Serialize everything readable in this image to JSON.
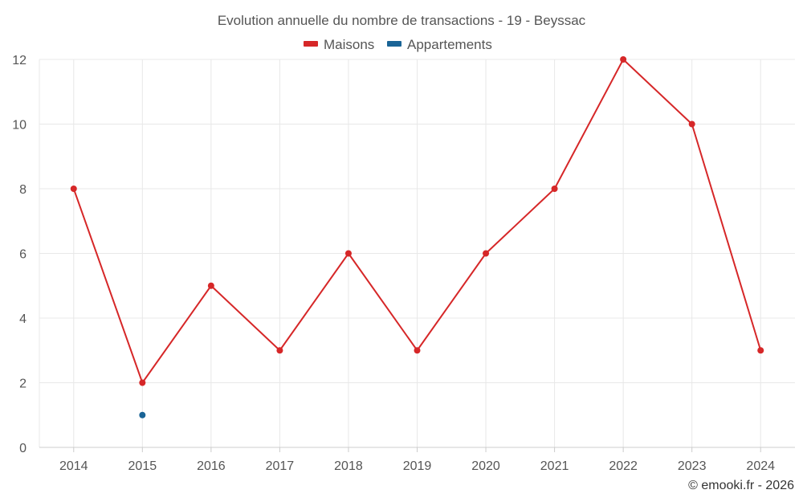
{
  "chart_data": {
    "type": "line",
    "title": "Evolution annuelle du nombre de transactions - 19 - Beyssac",
    "categories": [
      "2014",
      "2015",
      "2016",
      "2017",
      "2018",
      "2019",
      "2020",
      "2021",
      "2022",
      "2023",
      "2024"
    ],
    "series": [
      {
        "name": "Maisons",
        "color": "#d62728",
        "values": [
          8,
          2,
          5,
          3,
          6,
          3,
          6,
          8,
          12,
          10,
          3
        ]
      },
      {
        "name": "Appartements",
        "color": "#1a6496",
        "values": [
          null,
          1,
          null,
          null,
          null,
          null,
          null,
          null,
          null,
          null,
          null
        ]
      }
    ],
    "ylim": [
      0,
      12
    ],
    "yticks": [
      0,
      2,
      4,
      6,
      8,
      10,
      12
    ],
    "xlabel": "",
    "ylabel": "",
    "grid": true,
    "legend_position": "top-center"
  },
  "credit": "© emooki.fr - 2026"
}
